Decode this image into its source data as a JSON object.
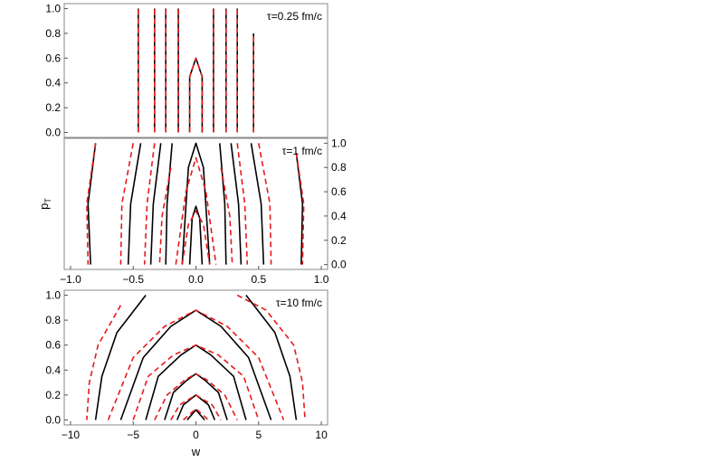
{
  "chart_data": [
    {
      "type": "line",
      "panel": "top",
      "annotation": "τ=0.25 fm/c",
      "xlim": [
        -1.05,
        1.05
      ],
      "ylim": [
        -0.04,
        1.04
      ],
      "yticks": [
        "0.0",
        "0.2",
        "0.4",
        "0.6",
        "0.8",
        "1.0"
      ],
      "y_axis_side": "left",
      "series": [
        {
          "style": "solid-black",
          "lines": [
            {
              "x": [
                -0.46,
                -0.46
              ],
              "y": [
                0.0,
                1.0
              ]
            },
            {
              "x": [
                -0.33,
                -0.33
              ],
              "y": [
                0.0,
                1.0
              ]
            },
            {
              "x": [
                -0.24,
                -0.24
              ],
              "y": [
                0.0,
                1.0
              ]
            },
            {
              "x": [
                -0.14,
                -0.14
              ],
              "y": [
                0.0,
                1.0
              ]
            },
            {
              "x": [
                -0.05,
                -0.05,
                0.0,
                0.05,
                0.05
              ],
              "y": [
                0.0,
                0.45,
                0.6,
                0.45,
                0.0
              ]
            },
            {
              "x": [
                0.14,
                0.14
              ],
              "y": [
                0.0,
                1.0
              ]
            },
            {
              "x": [
                0.24,
                0.24
              ],
              "y": [
                0.0,
                1.0
              ]
            },
            {
              "x": [
                0.33,
                0.33
              ],
              "y": [
                0.0,
                1.0
              ]
            },
            {
              "x": [
                0.46,
                0.46
              ],
              "y": [
                0.0,
                0.8
              ]
            }
          ]
        },
        {
          "style": "dashed-red",
          "lines": [
            {
              "x": [
                -0.46,
                -0.46
              ],
              "y": [
                0.0,
                1.0
              ]
            },
            {
              "x": [
                -0.33,
                -0.33
              ],
              "y": [
                0.0,
                1.0
              ]
            },
            {
              "x": [
                -0.24,
                -0.24
              ],
              "y": [
                0.0,
                1.0
              ]
            },
            {
              "x": [
                -0.14,
                -0.14
              ],
              "y": [
                0.0,
                1.0
              ]
            },
            {
              "x": [
                -0.05,
                -0.05,
                0.0,
                0.05,
                0.05
              ],
              "y": [
                0.0,
                0.45,
                0.6,
                0.45,
                0.0
              ]
            },
            {
              "x": [
                0.14,
                0.14
              ],
              "y": [
                0.0,
                1.0
              ]
            },
            {
              "x": [
                0.24,
                0.24
              ],
              "y": [
                0.0,
                1.0
              ]
            },
            {
              "x": [
                0.33,
                0.33
              ],
              "y": [
                0.0,
                1.0
              ]
            },
            {
              "x": [
                0.46,
                0.46
              ],
              "y": [
                0.0,
                0.8
              ]
            }
          ]
        }
      ]
    },
    {
      "type": "line",
      "panel": "middle",
      "annotation": "τ=1 fm/c",
      "ylabel": "p",
      "ylabel_sub": "T",
      "xlim": [
        -1.05,
        1.05
      ],
      "ylim": [
        -0.04,
        1.04
      ],
      "xticks": [
        "−1.0",
        "−0.5",
        "0.0",
        "0.5",
        "1.0"
      ],
      "yticks": [
        "0.0",
        "0.2",
        "0.4",
        "0.6",
        "0.8",
        "1.0"
      ],
      "y_axis_side": "right",
      "series": [
        {
          "style": "solid-black",
          "lines": [
            {
              "x": [
                -0.8,
                -0.86,
                -0.84
              ],
              "y": [
                1.0,
                0.5,
                0.0
              ]
            },
            {
              "x": [
                -0.44,
                -0.52,
                -0.54
              ],
              "y": [
                1.0,
                0.5,
                0.0
              ]
            },
            {
              "x": [
                -0.28,
                -0.34,
                -0.36
              ],
              "y": [
                1.0,
                0.5,
                0.0
              ]
            },
            {
              "x": [
                -0.19,
                -0.23,
                -0.24
              ],
              "y": [
                1.0,
                0.5,
                0.0
              ]
            },
            {
              "x": [
                -0.11,
                -0.06,
                0.0,
                0.06,
                0.11
              ],
              "y": [
                0.0,
                0.8,
                1.0,
                0.8,
                0.0
              ]
            },
            {
              "x": [
                -0.05,
                -0.03,
                0.0,
                0.03,
                0.05
              ],
              "y": [
                0.0,
                0.38,
                0.48,
                0.38,
                0.0
              ]
            },
            {
              "x": [
                0.19,
                0.23,
                0.24
              ],
              "y": [
                1.0,
                0.5,
                0.0
              ]
            },
            {
              "x": [
                0.28,
                0.34,
                0.36
              ],
              "y": [
                1.0,
                0.5,
                0.0
              ]
            },
            {
              "x": [
                0.44,
                0.52,
                0.54
              ],
              "y": [
                1.0,
                0.5,
                0.0
              ]
            },
            {
              "x": [
                0.8,
                0.85,
                0.84
              ],
              "y": [
                0.92,
                0.5,
                0.0
              ]
            }
          ]
        },
        {
          "style": "dashed-red",
          "lines": [
            {
              "x": [
                -0.8,
                -0.87,
                -0.86
              ],
              "y": [
                1.0,
                0.5,
                0.0
              ]
            },
            {
              "x": [
                -0.5,
                -0.59,
                -0.6
              ],
              "y": [
                1.0,
                0.5,
                0.0
              ]
            },
            {
              "x": [
                -0.33,
                -0.39,
                -0.41
              ],
              "y": [
                1.0,
                0.5,
                0.0
              ]
            },
            {
              "x": [
                -0.2,
                -0.27,
                -0.29
              ],
              "y": [
                0.8,
                0.4,
                0.0
              ]
            },
            {
              "x": [
                -0.16,
                -0.08,
                0.0,
                0.08,
                0.16
              ],
              "y": [
                0.0,
                0.6,
                0.88,
                0.6,
                0.0
              ]
            },
            {
              "x": [
                -0.11,
                -0.06,
                0.0,
                0.06,
                0.11
              ],
              "y": [
                0.0,
                0.33,
                0.44,
                0.33,
                0.0
              ]
            },
            {
              "x": [
                0.2,
                0.27,
                0.29
              ],
              "y": [
                0.8,
                0.4,
                0.0
              ]
            },
            {
              "x": [
                0.33,
                0.39,
                0.41
              ],
              "y": [
                1.0,
                0.5,
                0.0
              ]
            },
            {
              "x": [
                0.5,
                0.59,
                0.6
              ],
              "y": [
                1.0,
                0.5,
                0.0
              ]
            },
            {
              "x": [
                0.8,
                0.86,
                0.85
              ],
              "y": [
                0.92,
                0.5,
                0.0
              ]
            }
          ]
        }
      ]
    },
    {
      "type": "line",
      "panel": "bottom",
      "annotation": "τ=10 fm/c",
      "xlabel": "w",
      "xlim": [
        -10.5,
        10.5
      ],
      "ylim": [
        -0.04,
        1.04
      ],
      "xticks": [
        "−10",
        "−5",
        "0",
        "5",
        "10"
      ],
      "yticks": [
        "0.0",
        "0.2",
        "0.4",
        "0.6",
        "0.8",
        "1.0"
      ],
      "y_axis_side": "left",
      "series": [
        {
          "style": "solid-black",
          "lines": [
            {
              "x": [
                -4,
                -6.3,
                -7.5,
                -8
              ],
              "y": [
                1.0,
                0.7,
                0.35,
                0.0
              ]
            },
            {
              "x": [
                -6,
                -4.2,
                -2,
                -0.3,
                0
              ],
              "y": [
                0.0,
                0.5,
                0.75,
                0.86,
                0.88
              ]
            },
            {
              "x": [
                0,
                0.3,
                2,
                4.2,
                6
              ],
              "y": [
                0.88,
                0.86,
                0.75,
                0.5,
                0.0
              ]
            },
            {
              "x": [
                -4,
                -3,
                -1.2,
                0,
                1.2,
                3,
                4
              ],
              "y": [
                0.0,
                0.35,
                0.52,
                0.6,
                0.52,
                0.35,
                0.0
              ]
            },
            {
              "x": [
                -2.5,
                -1.8,
                -0.7,
                0,
                0.7,
                1.8,
                2.5
              ],
              "y": [
                0.0,
                0.22,
                0.32,
                0.37,
                0.32,
                0.22,
                0.0
              ]
            },
            {
              "x": [
                -1.5,
                -1,
                0,
                1,
                1.5
              ],
              "y": [
                0.0,
                0.12,
                0.2,
                0.12,
                0.0
              ]
            },
            {
              "x": [
                -0.7,
                0,
                0.7
              ],
              "y": [
                0.0,
                0.08,
                0.0
              ]
            },
            {
              "x": [
                4,
                6.3,
                7.5,
                8
              ],
              "y": [
                1.0,
                0.7,
                0.35,
                0.0
              ]
            }
          ]
        },
        {
          "style": "dashed-red",
          "lines": [
            {
              "x": [
                -6,
                -7.8,
                -8.5,
                -8.7
              ],
              "y": [
                0.92,
                0.6,
                0.3,
                0.0
              ]
            },
            {
              "x": [
                -7,
                -5,
                -2.5,
                0,
                2.5,
                5,
                7
              ],
              "y": [
                0.0,
                0.5,
                0.75,
                0.88,
                0.75,
                0.5,
                0.0
              ]
            },
            {
              "x": [
                -5,
                -3.8,
                -1.8,
                0,
                1.8,
                3.8,
                5
              ],
              "y": [
                0.0,
                0.35,
                0.52,
                0.6,
                0.52,
                0.35,
                0.0
              ]
            },
            {
              "x": [
                -3.3,
                -2.3,
                -0.9,
                0,
                0.9,
                2.3,
                3.3
              ],
              "y": [
                0.0,
                0.2,
                0.32,
                0.37,
                0.32,
                0.2,
                0.0
              ]
            },
            {
              "x": [
                -2,
                -1.3,
                0,
                1.3,
                2
              ],
              "y": [
                0.0,
                0.12,
                0.2,
                0.12,
                0.0
              ]
            },
            {
              "x": [
                -1,
                0,
                1
              ],
              "y": [
                0.0,
                0.09,
                0.0
              ]
            },
            {
              "x": [
                3.3,
                5.6,
                7.8,
                8.5,
                8.7
              ],
              "y": [
                1.0,
                0.88,
                0.6,
                0.3,
                0.0
              ]
            }
          ]
        }
      ]
    }
  ]
}
